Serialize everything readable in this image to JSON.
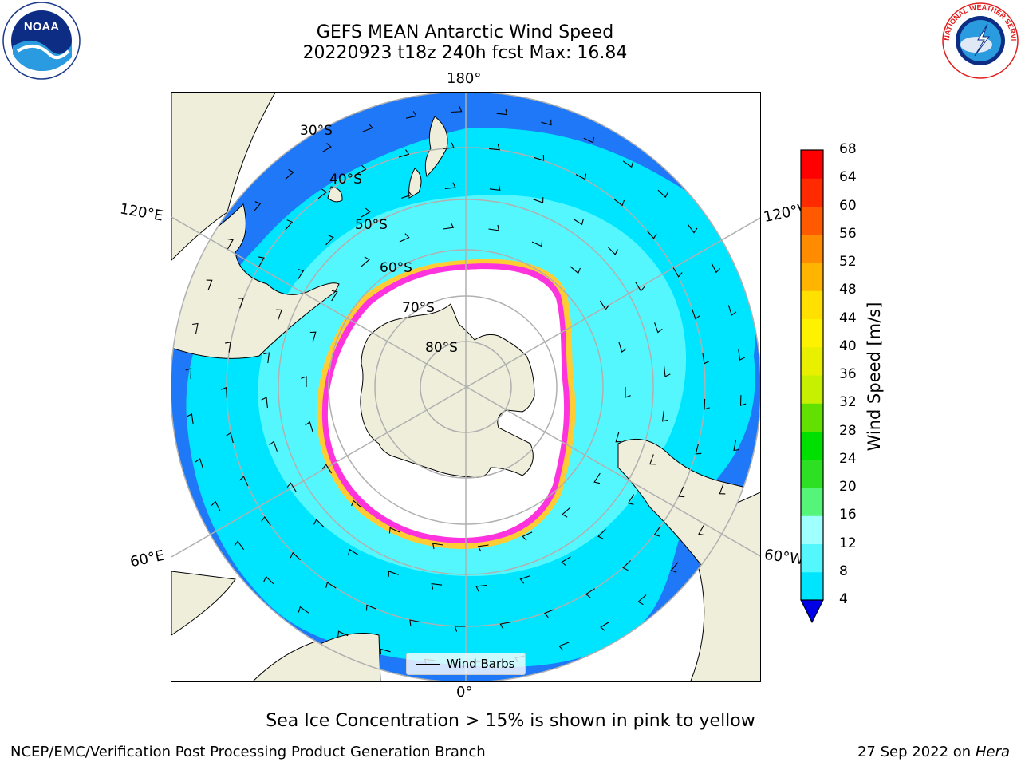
{
  "title": {
    "line1": "GEFS MEAN Antarctic Wind Speed",
    "line2": "20220923 t18z 240h fcst   Max: 16.84"
  },
  "map": {
    "projection": "south-polar-stereographic",
    "longitude_labels": [
      "180°",
      "0°",
      "120°E",
      "120°W",
      "60°E",
      "60°W"
    ],
    "latitude_labels": [
      "30°S",
      "40°S",
      "50°S",
      "60°S",
      "70°S",
      "80°S"
    ],
    "legend_label": "Wind Barbs",
    "colors": {
      "land": "#eeeedb",
      "ocean_4_8": "#1f78f7",
      "ocean_8_12": "#00e5ff",
      "ocean_12_16": "#55f7ff",
      "sea_ice_edge_pink": "#ff33dd",
      "sea_ice_edge_yellow": "#ffcc33",
      "grid": "#b0b0b0"
    }
  },
  "colorbar": {
    "label": "Wind Speed [m/s]",
    "ticks": [
      "4",
      "8",
      "12",
      "16",
      "20",
      "24",
      "28",
      "32",
      "36",
      "40",
      "44",
      "48",
      "52",
      "56",
      "60",
      "64",
      "68"
    ],
    "colors": [
      "#1f60f7",
      "#00e5ff",
      "#55f7ff",
      "#a0ffff",
      "#55f57a",
      "#2ee024",
      "#00e000",
      "#62e000",
      "#c7f000",
      "#e8f000",
      "#fff200",
      "#ffe000",
      "#ffb400",
      "#ff8c00",
      "#ff5a00",
      "#ff2a00",
      "#ff0000"
    ],
    "extend_arrow_color": "#0000e6"
  },
  "caption": "Sea Ice Concentration > 15% is shown in pink to yellow",
  "footer": {
    "credit": "NCEP/EMC/Verification Post Processing Product Generation Branch",
    "date": "27 Sep 2022 on",
    "system": "Hera"
  },
  "logos": {
    "left": "NOAA",
    "right_ring_text": "NATIONAL WEATHER SERVICE"
  }
}
